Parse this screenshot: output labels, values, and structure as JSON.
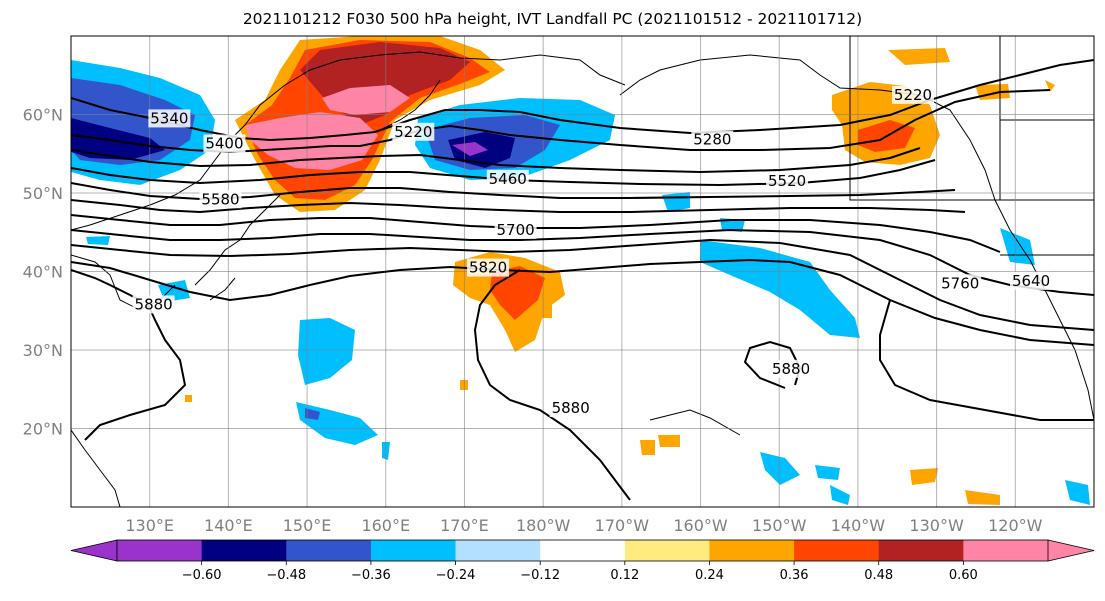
{
  "title": "2021101212 F030 500 hPa height, IVT Landfall PC (2021101512 - 2021101712)",
  "map": {
    "lon_range": [
      120,
      250
    ],
    "lat_range": [
      10,
      70
    ],
    "gridlines": true,
    "lat_ticks": [
      {
        "lat": 20,
        "label": "20°N"
      },
      {
        "lat": 30,
        "label": "30°N"
      },
      {
        "lat": 40,
        "label": "40°N"
      },
      {
        "lat": 50,
        "label": "50°N"
      },
      {
        "lat": 60,
        "label": "60°N"
      }
    ],
    "lon_ticks": [
      {
        "lon": 130,
        "label": "130°E"
      },
      {
        "lon": 140,
        "label": "140°E"
      },
      {
        "lon": 150,
        "label": "150°E"
      },
      {
        "lon": 160,
        "label": "160°E"
      },
      {
        "lon": 170,
        "label": "170°E"
      },
      {
        "lon": 180,
        "label": "180°W"
      },
      {
        "lon": 190,
        "label": "170°W"
      },
      {
        "lon": 200,
        "label": "160°W"
      },
      {
        "lon": 210,
        "label": "150°W"
      },
      {
        "lon": 220,
        "label": "140°W"
      },
      {
        "lon": 230,
        "label": "130°W"
      },
      {
        "lon": 240,
        "label": "120°W"
      }
    ],
    "contour_labels": [
      {
        "text": "5340",
        "lon": 132.5,
        "lat": 59.5
      },
      {
        "text": "5400",
        "lon": 139.5,
        "lat": 56.3
      },
      {
        "text": "5220",
        "lon": 163.5,
        "lat": 57.8
      },
      {
        "text": "5460",
        "lon": 175.5,
        "lat": 51.8
      },
      {
        "tex": "",
        "text": "5280",
        "lon": 201.5,
        "lat": 56.8
      },
      {
        "text": "5220",
        "lon": 227,
        "lat": 62.5
      },
      {
        "text": "5520",
        "lon": 211,
        "lat": 51.5
      },
      {
        "text": "5580",
        "lon": 139,
        "lat": 49.2
      },
      {
        "text": "5700",
        "lon": 176.5,
        "lat": 45.3
      },
      {
        "text": "5820",
        "lon": 173,
        "lat": 40.5
      },
      {
        "text": "5640",
        "lon": 242,
        "lat": 38.8
      },
      {
        "text": "5760",
        "lon": 233,
        "lat": 38.5
      },
      {
        "text": "5880",
        "lon": 130.5,
        "lat": 35.8
      },
      {
        "text": "5880",
        "lon": 211.5,
        "lat": 27.6
      },
      {
        "text": "5880",
        "lon": 183.5,
        "lat": 22.6
      }
    ]
  },
  "colorbar": {
    "colors": [
      "#9933cc",
      "#000080",
      "#3355cc",
      "#00bfff",
      "#b3e0ff",
      "#ffffff",
      "#ffeb80",
      "#ffa500",
      "#ff4500",
      "#b22222",
      "#ff85a6"
    ],
    "tick_labels": [
      "−0.60",
      "−0.48",
      "−0.36",
      "−0.24",
      "−0.12",
      "0.12",
      "0.24",
      "0.36",
      "0.48",
      "0.60"
    ],
    "extend": "both"
  }
}
